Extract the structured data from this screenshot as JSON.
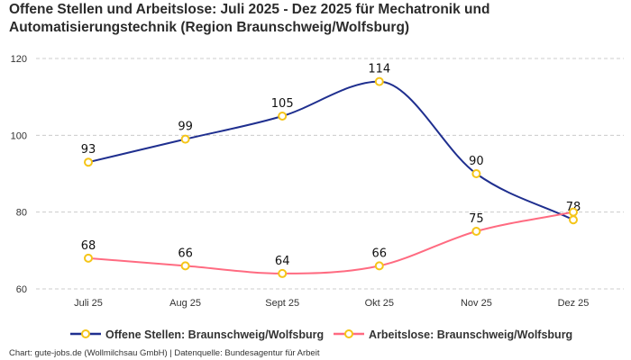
{
  "chart_data": {
    "type": "line",
    "title": "Offene Stellen und Arbeitslose: Juli 2025 - Dez 2025 für Mechatronik und Automatisierungstechnik (Region Braunschweig/Wolfsburg)",
    "categories": [
      "Juli 25",
      "Aug 25",
      "Sept 25",
      "Okt 25",
      "Nov 25",
      "Dez 25"
    ],
    "series": [
      {
        "name": "Offene Stellen: Braunschweig/Wolfsburg",
        "values": [
          93,
          99,
          105,
          114,
          90,
          78
        ],
        "color": "#1f2f8f"
      },
      {
        "name": "Arbeitslose: Braunschweig/Wolfsburg",
        "values": [
          68,
          66,
          64,
          66,
          75,
          80
        ],
        "color": "#ff6b81"
      }
    ],
    "marker_color": "#f5c518",
    "yticks": [
      60,
      80,
      100,
      120
    ],
    "ylim": [
      60,
      120
    ],
    "grid": true,
    "legend": "bottom",
    "xlabel": "",
    "ylabel": ""
  },
  "credit": "Chart: gute-jobs.de (Wollmilchsau GmbH) | Datenquelle: Bundesagentur für Arbeit"
}
